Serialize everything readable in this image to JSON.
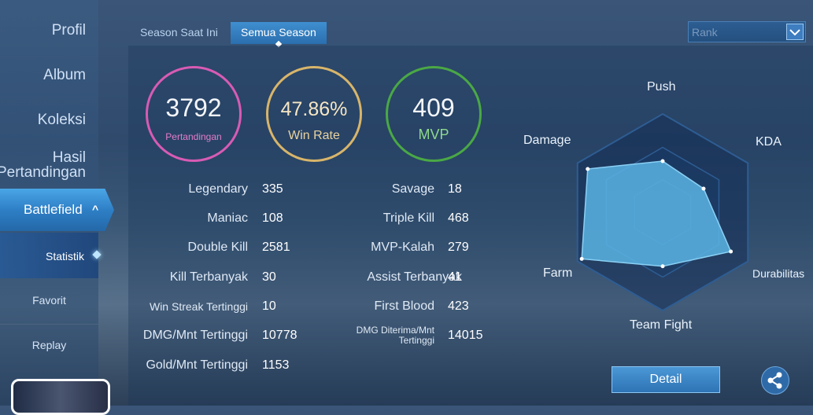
{
  "sidebar": {
    "items": [
      {
        "label": "Profil"
      },
      {
        "label": "Album"
      },
      {
        "label": "Koleksi"
      },
      {
        "label_line1": "Hasil",
        "label_line2": "Pertandingan"
      }
    ],
    "battlefield": {
      "label": "Battlefield",
      "chevron": "^"
    },
    "sub_items": [
      {
        "label": "Statistik"
      },
      {
        "label": "Favorit"
      },
      {
        "label": "Replay"
      }
    ]
  },
  "tabs": [
    {
      "label": "Season Saat Ini",
      "active": false
    },
    {
      "label": "Semua Season",
      "active": true
    }
  ],
  "mode_select": {
    "value": "Rank"
  },
  "summary": {
    "matches": {
      "value": "3792",
      "label": "Pertandingan",
      "color": "#d85bb4"
    },
    "win_rate": {
      "value": "47.86%",
      "label": "Win Rate",
      "color": "#d8b56a"
    },
    "mvp": {
      "value": "409",
      "label": "MVP",
      "color": "#4aa845"
    }
  },
  "stats_left": [
    {
      "label": "Legendary",
      "value": "335"
    },
    {
      "label": "Maniac",
      "value": "108"
    },
    {
      "label": "Double Kill",
      "value": "2581"
    },
    {
      "label": "Kill Terbanyak",
      "value": "30"
    },
    {
      "label": "Win Streak Tertinggi",
      "value": "10"
    },
    {
      "label": "DMG/Mnt Tertinggi",
      "value": "10778"
    },
    {
      "label": "Gold/Mnt Tertinggi",
      "value": "1153"
    }
  ],
  "stats_right": [
    {
      "label": "Savage",
      "value": "18"
    },
    {
      "label": "Triple Kill",
      "value": "468"
    },
    {
      "label": "MVP-Kalah",
      "value": "279"
    },
    {
      "label": "Assist Terbanyak",
      "value": "41"
    },
    {
      "label": "First Blood",
      "value": "423"
    },
    {
      "label_line1": "DMG Diterima/Mnt",
      "label_line2": "Tertinggi",
      "value": "14015"
    }
  ],
  "radar": {
    "axes": [
      "Push",
      "KDA",
      "Durabilitas",
      "Team Fight",
      "Farm",
      "Damage"
    ],
    "values": [
      0.52,
      0.48,
      0.8,
      0.55,
      0.95,
      0.88
    ],
    "fill_color": "#5ab4e4"
  },
  "actions": {
    "detail_label": "Detail",
    "share_icon": "share-icon"
  }
}
